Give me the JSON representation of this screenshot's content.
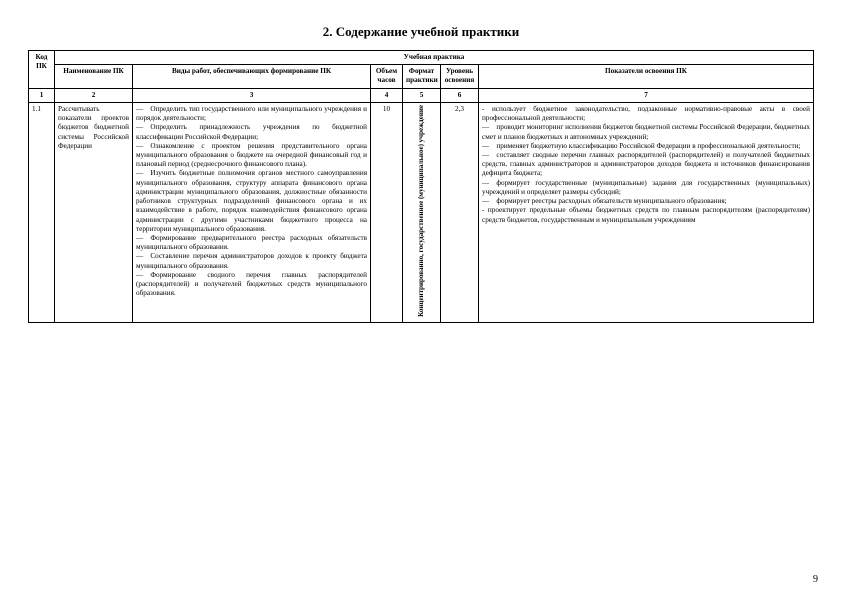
{
  "title": "2. Содержание учебной практики",
  "headers": {
    "code": "Код ПК",
    "group": "Учебная практика",
    "name": "Наименование ПК",
    "works": "Виды работ, обеспечивающих формирование ПК",
    "hours": "Объем часов",
    "format": "Формат практики",
    "level": "Уровень освоения",
    "indicators": "Показатели освоения ПК"
  },
  "numrow": {
    "c1": "1",
    "c2": "2",
    "c3": "3",
    "c4": "4",
    "c5": "5",
    "c6": "6",
    "c7": "7"
  },
  "row": {
    "code": "1.1",
    "name": "Рассчитывать показатели проектов бюджетов бюджетной системы Российской Федерации",
    "works": "— Определить тип государственного или муниципального учреждения и порядок деятельности;\n— Определить принадлежность учреждения по бюджетной классификации Российской Федерации;\n— Ознакомление с проектом решения представительного органа муниципального образования о бюджете на очередной финансовый год и плановый период (среднесрочного финансового плана).\n— Изучить бюджетные полномочия органов местного самоуправления муниципального образования, структуру аппарата финансового органа администрации муниципального образования, должностные обязанности работников структурных подразделений финансового органа и их взаимодействие в работе, порядок взаимодействия финансового органа администрации с другими участниками бюджетного процесса на территории муниципального образования.\n— Формирование предварительного реестра расходных обязательств муниципального образования.\n— Составление перечня администраторов доходов к проекту бюджета муниципального образования.\n— Формирование сводного перечня главных распорядителей (распорядителей) и получателей бюджетных средств муниципального образования.",
    "hours": "10",
    "format_vertical": "Концентрированно, государственное (муниципальное) учреждение",
    "level": "2,3",
    "indicators": "- использует бюджетное законодательство, подзаконные нормативно-правовые акты в своей профессиональной деятельности;\n— проводит мониторинг исполнения бюджетов бюджетной системы Российской Федерации, бюджетных смет и планов бюджетных и автономных учреждений;\n— применяет бюджетную классификацию Российской Федерации в профессиональной деятельности;\n— составляет сводные перечни главных распорядителей (распорядителей) и получателей бюджетных средств, главных администраторов и администраторов доходов бюджета и источников финансирования дефицита бюджета;\n— формирует государственные (муниципальные) задания для государственных (муниципальных) учреждений и определяет размеры субсидий;\n— формирует реестры расходных обязательств муниципального образования;\n- проектирует предельные объемы бюджетных средств по главным распорядителям (распорядителям) средств бюджетов, государственным и муниципальным учреждениям"
  },
  "page_number": "9"
}
